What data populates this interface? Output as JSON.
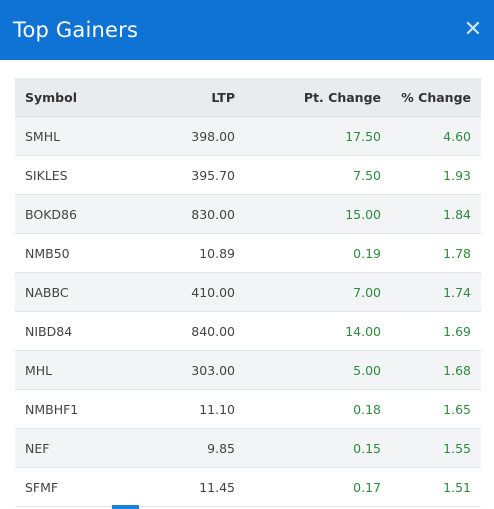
{
  "modal": {
    "title": "Top Gainers",
    "close_icon": "close-icon"
  },
  "table": {
    "headers": [
      "Symbol",
      "LTP",
      "Pt. Change",
      "% Change"
    ],
    "rows": [
      {
        "symbol": "SMHL",
        "ltp": "398.00",
        "pt_change": "17.50",
        "pct_change": "4.60"
      },
      {
        "symbol": "SIKLES",
        "ltp": "395.70",
        "pt_change": "7.50",
        "pct_change": "1.93"
      },
      {
        "symbol": "BOKD86",
        "ltp": "830.00",
        "pt_change": "15.00",
        "pct_change": "1.84"
      },
      {
        "symbol": "NMB50",
        "ltp": "10.89",
        "pt_change": "0.19",
        "pct_change": "1.78"
      },
      {
        "symbol": "NABBC",
        "ltp": "410.00",
        "pt_change": "7.00",
        "pct_change": "1.74"
      },
      {
        "symbol": "NIBD84",
        "ltp": "840.00",
        "pt_change": "14.00",
        "pct_change": "1.69"
      },
      {
        "symbol": "MHL",
        "ltp": "303.00",
        "pt_change": "5.00",
        "pct_change": "1.68"
      },
      {
        "symbol": "NMBHF1",
        "ltp": "11.10",
        "pt_change": "0.18",
        "pct_change": "1.65"
      },
      {
        "symbol": "NEF",
        "ltp": "9.85",
        "pt_change": "0.15",
        "pct_change": "1.55"
      },
      {
        "symbol": "SFMF",
        "ltp": "11.45",
        "pt_change": "0.17",
        "pct_change": "1.51"
      }
    ]
  },
  "colors": {
    "header_bg": "#0f73d6",
    "positive": "#2e8b3e"
  }
}
